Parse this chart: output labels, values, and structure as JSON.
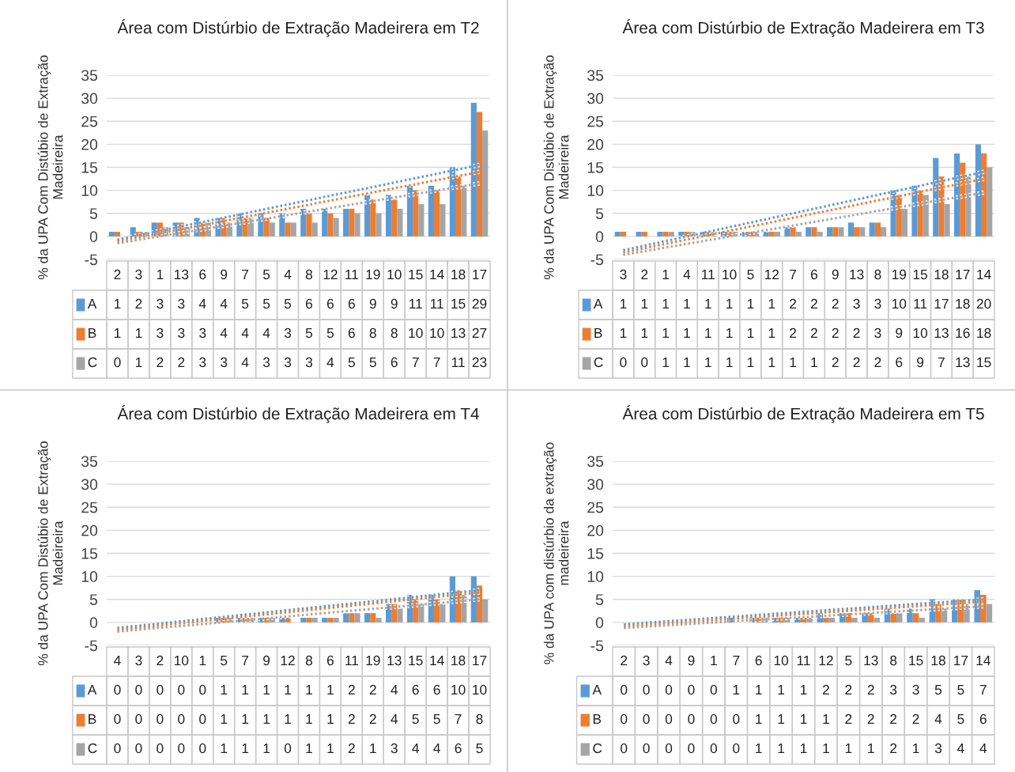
{
  "chart_data": [
    {
      "type": "bar",
      "title": "Área com Distúrbio de Extração Madeirera em T2",
      "ylabel": "% da UPA Com Distúbio de Extração Madeireira",
      "categories": [
        "2",
        "3",
        "1",
        "13",
        "6",
        "9",
        "7",
        "5",
        "4",
        "8",
        "12",
        "11",
        "19",
        "10",
        "15",
        "14",
        "18",
        "17"
      ],
      "ylim": [
        -5,
        35
      ],
      "yticks": [
        -5,
        0,
        5,
        10,
        15,
        20,
        25,
        30,
        35
      ],
      "grid": "y",
      "legend": "bottom",
      "data_labels": true,
      "series": [
        {
          "name": "A",
          "color": "#5b9bd5",
          "values": [
            1,
            2,
            3,
            3,
            4,
            4,
            5,
            5,
            5,
            6,
            6,
            6,
            9,
            9,
            11,
            11,
            15,
            29
          ]
        },
        {
          "name": "B",
          "color": "#ed7d31",
          "values": [
            1,
            1,
            3,
            3,
            3,
            4,
            4,
            4,
            3,
            5,
            5,
            6,
            8,
            8,
            10,
            10,
            13,
            27
          ]
        },
        {
          "name": "C",
          "color": "#a5a5a5",
          "values": [
            0,
            1,
            2,
            2,
            3,
            3,
            4,
            3,
            3,
            3,
            4,
            5,
            5,
            6,
            7,
            7,
            11,
            23
          ]
        },
        {
          "type": "line",
          "line_style": "dotted",
          "color": "#5b9bd5",
          "x": [
            "2",
            "17"
          ],
          "values": [
            -0.7,
            15.5
          ],
          "value_labels": [
            null,
            null
          ]
        },
        {
          "type": "line",
          "line_style": "dotted",
          "color": "#ed7d31",
          "x": [
            "2",
            "17"
          ],
          "values": [
            -1.1,
            14
          ],
          "value_labels": [
            null,
            null
          ]
        },
        {
          "type": "line",
          "line_style": "dotted",
          "color": "#a5a5a5",
          "x": [
            "2",
            "17"
          ],
          "values": [
            -1.5,
            11.5
          ],
          "value_labels": [
            null,
            null
          ]
        }
      ]
    },
    {
      "type": "bar",
      "title": "Área com Distúrbio de Extração Madeirera em T3",
      "ylabel": "% da UPA Com Distúbio de Extração Madeireira",
      "categories": [
        "3",
        "2",
        "1",
        "4",
        "11",
        "10",
        "5",
        "12",
        "7",
        "6",
        "9",
        "13",
        "8",
        "19",
        "15",
        "18",
        "17",
        "14"
      ],
      "ylim": [
        -5,
        35
      ],
      "yticks": [
        -5,
        0,
        5,
        10,
        15,
        20,
        25,
        30,
        35
      ],
      "grid": "y",
      "legend": "bottom",
      "data_labels": true,
      "series": [
        {
          "name": "A",
          "color": "#5b9bd5",
          "values": [
            1,
            1,
            1,
            1,
            1,
            1,
            1,
            1,
            2,
            2,
            2,
            3,
            3,
            10,
            11,
            17,
            18,
            20
          ]
        },
        {
          "name": "B",
          "color": "#ed7d31",
          "values": [
            1,
            1,
            1,
            1,
            1,
            1,
            1,
            1,
            2,
            2,
            2,
            2,
            3,
            9,
            10,
            13,
            16,
            18
          ]
        },
        {
          "name": "C",
          "color": "#a5a5a5",
          "values": [
            0,
            0,
            1,
            1,
            1,
            1,
            1,
            1,
            1,
            1,
            2,
            2,
            2,
            6,
            9,
            7,
            13,
            15
          ]
        },
        {
          "type": "line",
          "line_style": "dotted",
          "color": "#5b9bd5",
          "x": [
            "3",
            "14"
          ],
          "values": [
            -3,
            14
          ],
          "value_labels": [
            null,
            null
          ]
        },
        {
          "type": "line",
          "line_style": "dotted",
          "color": "#ed7d31",
          "x": [
            "3",
            "14"
          ],
          "values": [
            -3.5,
            12.5
          ],
          "value_labels": [
            null,
            null
          ]
        },
        {
          "type": "line",
          "line_style": "dotted",
          "color": "#a5a5a5",
          "x": [
            "3",
            "14"
          ],
          "values": [
            -4,
            9.5
          ],
          "value_labels": [
            null,
            null
          ]
        }
      ]
    },
    {
      "type": "bar",
      "title": "Área com Distúrbio de Extração Madeirera em T4",
      "ylabel": "% da UPA Com Distúbio de Extração Madeireira",
      "categories": [
        "4",
        "3",
        "2",
        "10",
        "1",
        "5",
        "7",
        "9",
        "12",
        "8",
        "6",
        "11",
        "19",
        "13",
        "15",
        "14",
        "18",
        "17"
      ],
      "ylim": [
        -5,
        35
      ],
      "yticks": [
        -5,
        0,
        5,
        10,
        15,
        20,
        25,
        30,
        35
      ],
      "grid": "y",
      "legend": "bottom",
      "data_labels": true,
      "series": [
        {
          "name": "A",
          "color": "#5b9bd5",
          "values": [
            0,
            0,
            0,
            0,
            0,
            1,
            1,
            1,
            1,
            1,
            1,
            2,
            2,
            4,
            6,
            6,
            10,
            10
          ]
        },
        {
          "name": "B",
          "color": "#ed7d31",
          "values": [
            0,
            0,
            0,
            0,
            0,
            1,
            1,
            1,
            1,
            1,
            1,
            2,
            2,
            4,
            5,
            5,
            7,
            8
          ]
        },
        {
          "name": "C",
          "color": "#a5a5a5",
          "values": [
            0,
            0,
            0,
            0,
            0,
            1,
            1,
            1,
            0,
            1,
            1,
            2,
            1,
            3,
            4,
            4,
            6,
            5
          ]
        },
        {
          "type": "line",
          "line_style": "dotted",
          "color": "#5b9bd5",
          "x": [
            "4",
            "17"
          ],
          "values": [
            -1.2,
            7
          ],
          "value_labels": [
            null,
            null
          ]
        },
        {
          "type": "line",
          "line_style": "dotted",
          "color": "#ed7d31",
          "x": [
            "4",
            "17"
          ],
          "values": [
            -1.6,
            6.5
          ],
          "value_labels": [
            null,
            null
          ]
        },
        {
          "type": "line",
          "line_style": "dotted",
          "color": "#a5a5a5",
          "x": [
            "4",
            "17"
          ],
          "values": [
            -2,
            5
          ],
          "value_labels": [
            null,
            null
          ]
        }
      ]
    },
    {
      "type": "bar",
      "title": "Área com Distúrbio de Extração Madeirera em T5",
      "ylabel": "% da UPA com distúrbio da extração madeireira",
      "categories": [
        "2",
        "3",
        "4",
        "9",
        "1",
        "7",
        "6",
        "10",
        "11",
        "12",
        "5",
        "13",
        "8",
        "15",
        "18",
        "17",
        "14"
      ],
      "ylim": [
        -5,
        35
      ],
      "yticks": [
        -5,
        0,
        5,
        10,
        15,
        20,
        25,
        30,
        35
      ],
      "grid": "y",
      "legend": "bottom",
      "data_labels": true,
      "series": [
        {
          "name": "A",
          "color": "#5b9bd5",
          "values": [
            0,
            0,
            0,
            0,
            0,
            1,
            1,
            1,
            1,
            2,
            2,
            2,
            3,
            3,
            5,
            5,
            7
          ]
        },
        {
          "name": "B",
          "color": "#ed7d31",
          "values": [
            0,
            0,
            0,
            0,
            0,
            0,
            1,
            1,
            1,
            1,
            2,
            2,
            2,
            2,
            4,
            5,
            6
          ]
        },
        {
          "name": "C",
          "color": "#a5a5a5",
          "values": [
            0,
            0,
            0,
            0,
            0,
            0,
            1,
            1,
            1,
            1,
            1,
            1,
            2,
            1,
            3,
            4,
            4
          ]
        },
        {
          "type": "line",
          "line_style": "dotted",
          "color": "#5b9bd5",
          "x": [
            "2",
            "14"
          ],
          "values": [
            -0.4,
            5
          ],
          "value_labels": [
            null,
            null
          ]
        },
        {
          "type": "line",
          "line_style": "dotted",
          "color": "#ed7d31",
          "x": [
            "2",
            "14"
          ],
          "values": [
            -0.8,
            4.5
          ],
          "value_labels": [
            null,
            null
          ]
        },
        {
          "type": "line",
          "line_style": "dotted",
          "color": "#a5a5a5",
          "x": [
            "2",
            "14"
          ],
          "values": [
            -1.2,
            3.5
          ],
          "value_labels": [
            null,
            null
          ]
        }
      ]
    }
  ]
}
